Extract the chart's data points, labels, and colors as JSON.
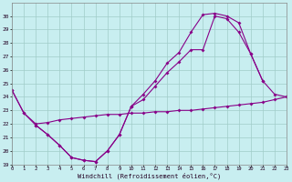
{
  "xlabel": "Windchill (Refroidissement éolien,°C)",
  "bg_color": "#c8eef0",
  "grid_color": "#a0ccc8",
  "line_color": "#880088",
  "ylim": [
    19,
    31
  ],
  "yticks": [
    19,
    20,
    21,
    22,
    23,
    24,
    25,
    26,
    27,
    28,
    29,
    30
  ],
  "xlim": [
    0,
    23
  ],
  "xticks": [
    0,
    1,
    2,
    3,
    4,
    5,
    6,
    7,
    8,
    9,
    10,
    11,
    12,
    13,
    14,
    15,
    16,
    17,
    18,
    19,
    20,
    21,
    22,
    23
  ],
  "curve_A_x": [
    0,
    1,
    2,
    3,
    4,
    5,
    6,
    7,
    8,
    9,
    10
  ],
  "curve_A_y": [
    24.5,
    22.8,
    21.9,
    21.2,
    20.4,
    19.5,
    19.3,
    19.2,
    20.0,
    21.2,
    23.3
  ],
  "curve_B_x": [
    0,
    1,
    2,
    3,
    4,
    5,
    6,
    7,
    8,
    9,
    10,
    11,
    12,
    13,
    14,
    15,
    16,
    17,
    18,
    19,
    20,
    21,
    22,
    23
  ],
  "curve_B_y": [
    24.5,
    22.8,
    22.0,
    22.1,
    22.3,
    22.4,
    22.5,
    22.6,
    22.7,
    22.7,
    22.8,
    22.8,
    22.9,
    22.9,
    23.0,
    23.0,
    23.1,
    23.2,
    23.3,
    23.4,
    23.5,
    23.6,
    23.8,
    24.0
  ],
  "curve_C_x": [
    2,
    3,
    4,
    5,
    6,
    7,
    8,
    9,
    10,
    11,
    12,
    13,
    14,
    15,
    16,
    17,
    18,
    19,
    20,
    21
  ],
  "curve_C_y": [
    21.9,
    21.2,
    20.4,
    19.5,
    19.3,
    19.2,
    20.0,
    21.2,
    23.3,
    24.2,
    25.2,
    26.5,
    27.3,
    28.8,
    30.1,
    30.2,
    30.0,
    29.5,
    27.2,
    25.2
  ],
  "curve_D_x": [
    10,
    11,
    12,
    13,
    14,
    15,
    16,
    17,
    18,
    19,
    20,
    21,
    22,
    23
  ],
  "curve_D_y": [
    23.3,
    23.8,
    24.8,
    25.8,
    26.6,
    27.5,
    27.5,
    30.0,
    29.8,
    28.8,
    27.2,
    25.2,
    24.2,
    24.0
  ]
}
